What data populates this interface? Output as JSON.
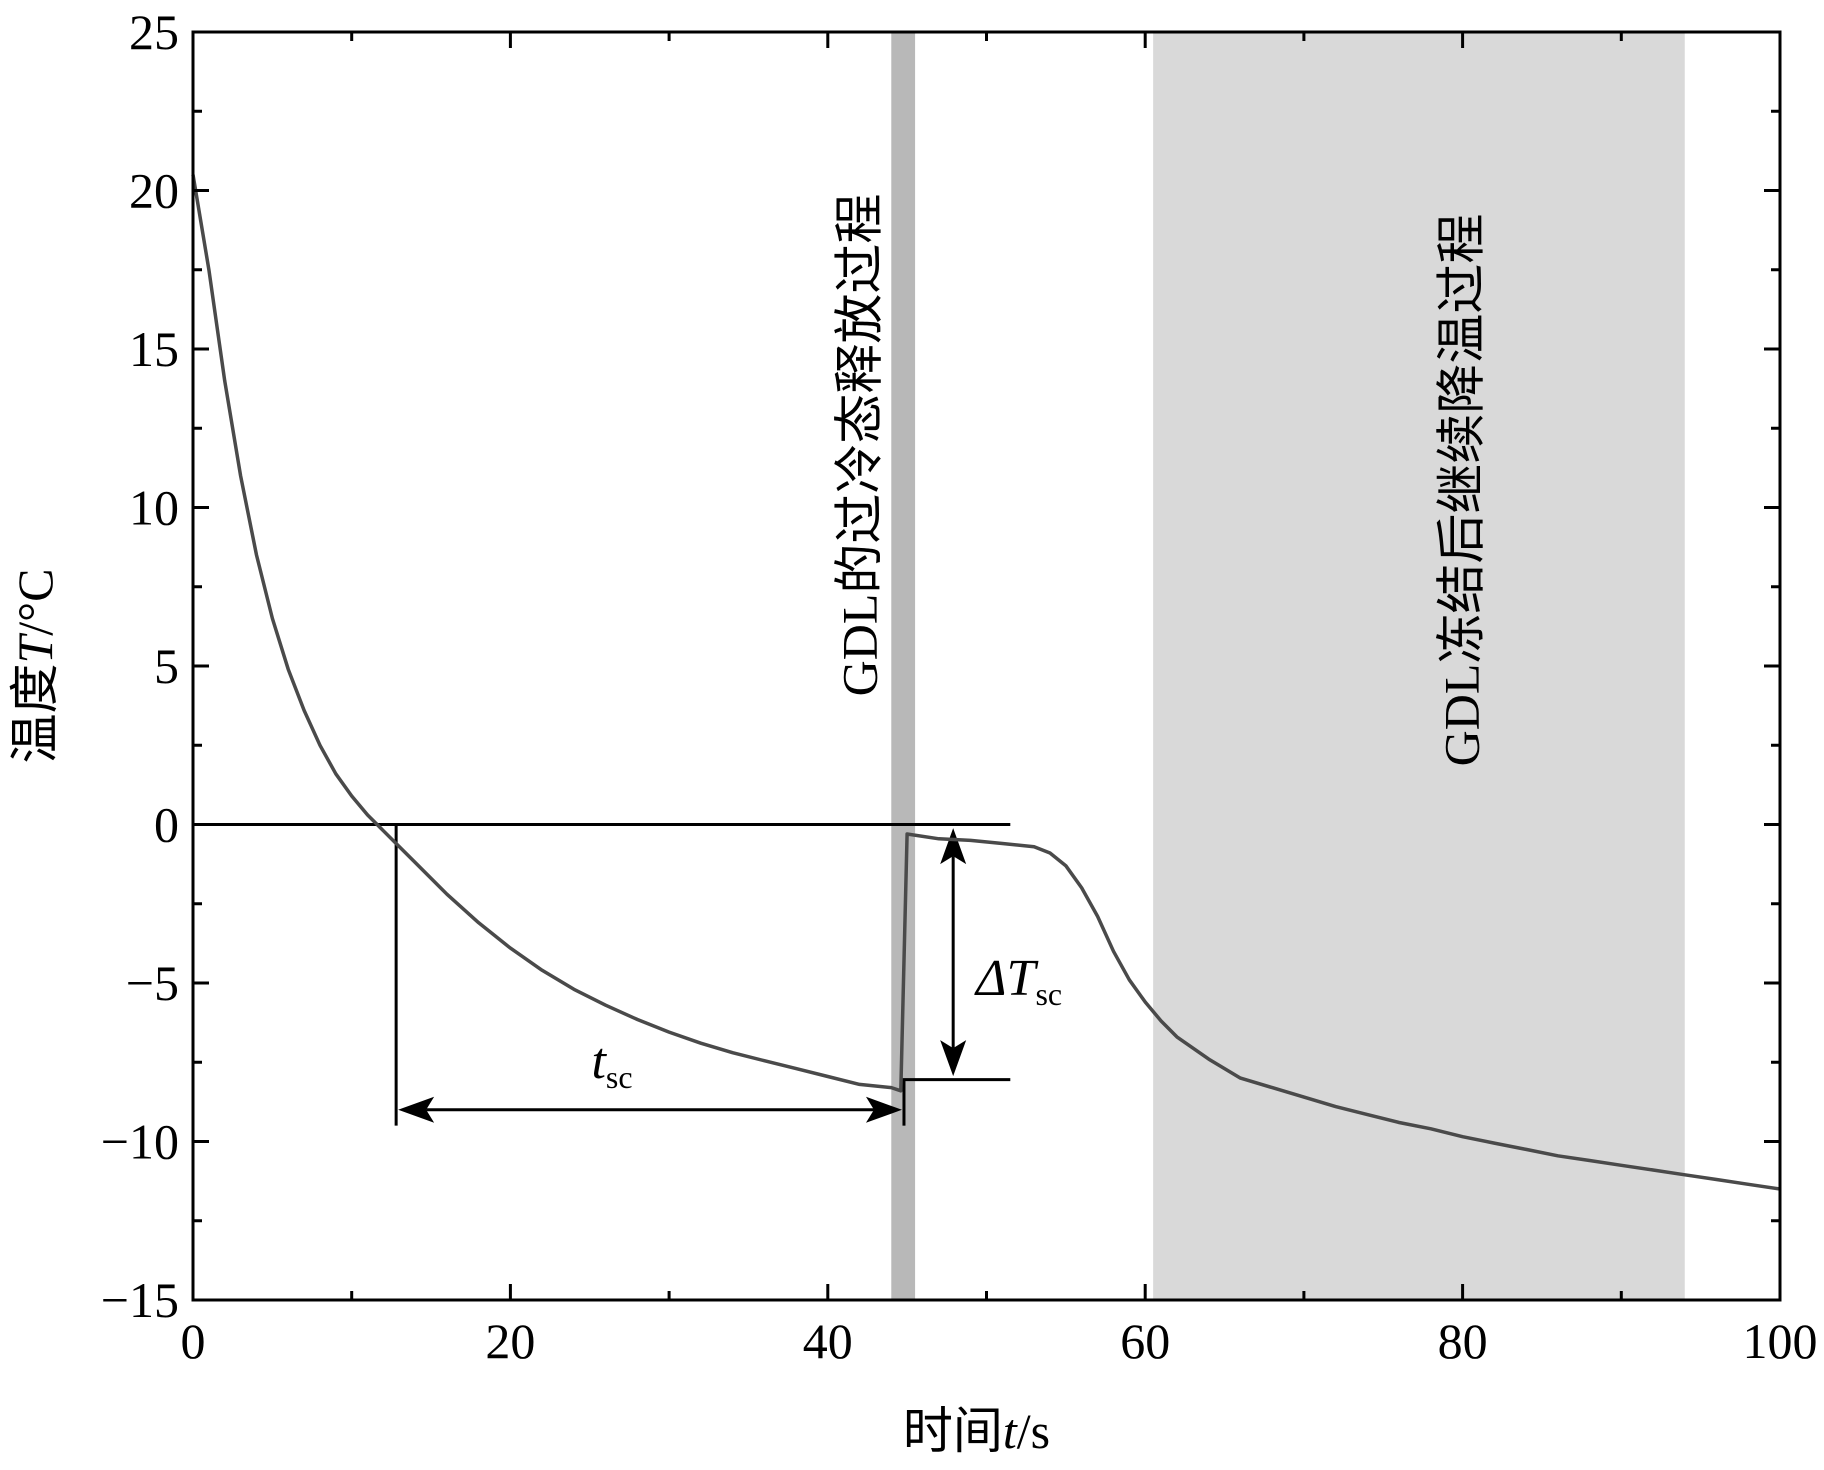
{
  "chart_data": {
    "type": "line",
    "xlabel": "时间t/s",
    "ylabel": "温度T/°C",
    "xlabel_parts": {
      "prefix": "时间",
      "var": "t",
      "suffix": "/s"
    },
    "ylabel_parts": {
      "prefix": "温度",
      "var": "T",
      "suffix": "/°C"
    },
    "xlim": [
      0,
      100
    ],
    "ylim": [
      -15,
      25
    ],
    "x_ticks": [
      0,
      20,
      40,
      60,
      80,
      100
    ],
    "x_tick_labels": [
      "0",
      "20",
      "40",
      "60",
      "80",
      "100"
    ],
    "x_minor_step": 10,
    "y_ticks": [
      25,
      20,
      15,
      10,
      5,
      0,
      -5,
      -10,
      -15
    ],
    "y_tick_labels": [
      "25",
      "20",
      "15",
      "10",
      "5",
      "0",
      "−5",
      "−10",
      "−15"
    ],
    "y_minor_step": 2.5,
    "grid": false,
    "line_color": "#4a4a4a",
    "series": [
      {
        "x": [
          0,
          1,
          2,
          3,
          4,
          5,
          6,
          7,
          8,
          9,
          10,
          11,
          12,
          12.8,
          14,
          16,
          18,
          20,
          22,
          24,
          26,
          28,
          30,
          32,
          34,
          36,
          38,
          40,
          42,
          44,
          44.6,
          45,
          47,
          49,
          51,
          53,
          54,
          55,
          56,
          57,
          58,
          59,
          60,
          61,
          62,
          64,
          66,
          68,
          70,
          72,
          74,
          76,
          78,
          80,
          82,
          84,
          86,
          88,
          90,
          92,
          94,
          96,
          98,
          100
        ],
        "y": [
          20.5,
          17.5,
          14.0,
          11.0,
          8.5,
          6.5,
          4.9,
          3.6,
          2.5,
          1.6,
          0.9,
          0.3,
          -0.2,
          -0.6,
          -1.2,
          -2.2,
          -3.1,
          -3.9,
          -4.6,
          -5.2,
          -5.7,
          -6.15,
          -6.55,
          -6.9,
          -7.2,
          -7.45,
          -7.7,
          -7.95,
          -8.2,
          -8.3,
          -8.4,
          -0.3,
          -0.45,
          -0.5,
          -0.6,
          -0.7,
          -0.9,
          -1.3,
          -2.0,
          -2.9,
          -4.0,
          -4.9,
          -5.6,
          -6.2,
          -6.7,
          -7.4,
          -8.0,
          -8.3,
          -8.6,
          -8.9,
          -9.15,
          -9.4,
          -9.6,
          -9.85,
          -10.05,
          -10.25,
          -10.45,
          -10.6,
          -10.75,
          -10.9,
          -11.05,
          -11.2,
          -11.35,
          -11.5
        ]
      }
    ],
    "regions": [
      {
        "x0": 44.0,
        "x1": 45.5,
        "color": "#b8b8b8",
        "label": "GDL的过冷态释放过程"
      },
      {
        "x0": 60.5,
        "x1": 94.0,
        "color": "#d9d9d9",
        "label": "GDL冻结后继续降温过程"
      }
    ],
    "annotations": {
      "zero_line": {
        "y": 0,
        "x0": 0,
        "x1": 51.5
      },
      "low_line": {
        "y": -8.05,
        "x0": 44.6,
        "x1": 51.5
      },
      "t_marker": {
        "x": 12.8,
        "y_top": 0,
        "y_bottom": -9.5
      },
      "t_release": {
        "x": 44.8,
        "y_top": -8.05,
        "y_bottom": -9.5
      },
      "t_sc_arrow": {
        "x0": 12.8,
        "x1": 44.8,
        "y": -9.0
      },
      "dT_arrow": {
        "x": 47.9,
        "y0": -0.05,
        "y1": -8.0
      },
      "t_sc_label": {
        "main": "t",
        "sub": "sc"
      },
      "dT_sc_label": {
        "main": "ΔT",
        "sub": "sc"
      }
    }
  }
}
